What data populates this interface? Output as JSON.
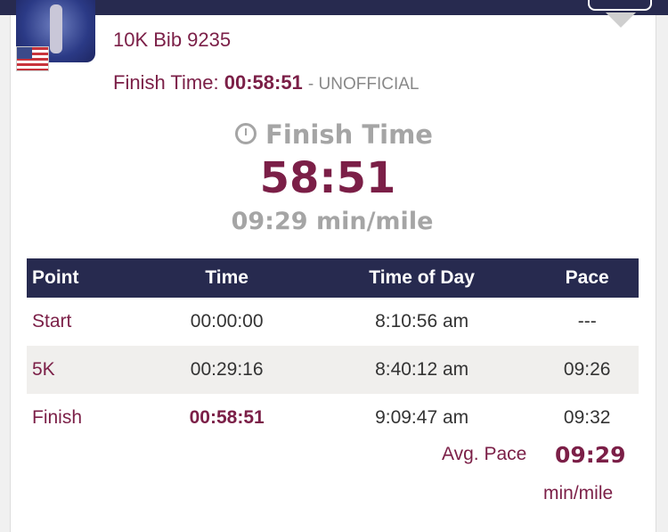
{
  "header": {
    "bib": "10K Bib 9235",
    "finish_label": "Finish Time:",
    "finish_value": "00:58:51",
    "status": "- UNOFFICIAL"
  },
  "summary": {
    "title": "Finish Time",
    "time": "58:51",
    "pace": "09:29 min/mile"
  },
  "table": {
    "columns": [
      "Point",
      "Time",
      "Time of Day",
      "Pace"
    ],
    "rows": [
      [
        "Start",
        "00:00:00",
        "8:10:56 am",
        "---"
      ],
      [
        "5K",
        "00:29:16",
        "8:40:12 am",
        "09:26"
      ],
      [
        "Finish",
        "00:58:51",
        "9:09:47 am",
        "09:32"
      ]
    ]
  },
  "avg": {
    "label": "Avg. Pace",
    "value": "09:29",
    "unit": "min/mile"
  },
  "colors": {
    "brand": "#7b1f47",
    "nav": "#272a4f"
  }
}
